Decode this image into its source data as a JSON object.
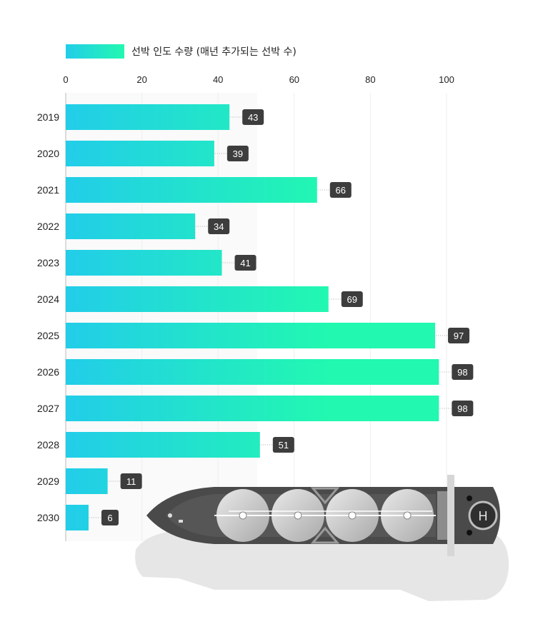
{
  "chart_data": {
    "type": "bar",
    "orientation": "horizontal",
    "title": "",
    "xlabel": "",
    "ylabel": "",
    "legend": {
      "label": "선박 인도 수량 (매년 추가되는 선박 수)",
      "placement": "top-left"
    },
    "categories": [
      "2019",
      "2020",
      "2021",
      "2022",
      "2023",
      "2024",
      "2025",
      "2026",
      "2027",
      "2028",
      "2029",
      "2030"
    ],
    "series": [
      {
        "name": "선박 인도 수량 (매년 추가되는 선박 수)",
        "values": [
          43,
          39,
          66,
          34,
          41,
          69,
          97,
          98,
          98,
          51,
          11,
          6
        ]
      }
    ],
    "xlim": [
      0,
      100
    ],
    "xticks": [
      0,
      20,
      40,
      60,
      80,
      100
    ],
    "grid": true,
    "colors": {
      "gradient_start": "#22cde9",
      "gradient_end": "#22f8b0",
      "label_box": "#3d3d3d"
    },
    "decoration": "lng-carrier-ship-illustration"
  }
}
